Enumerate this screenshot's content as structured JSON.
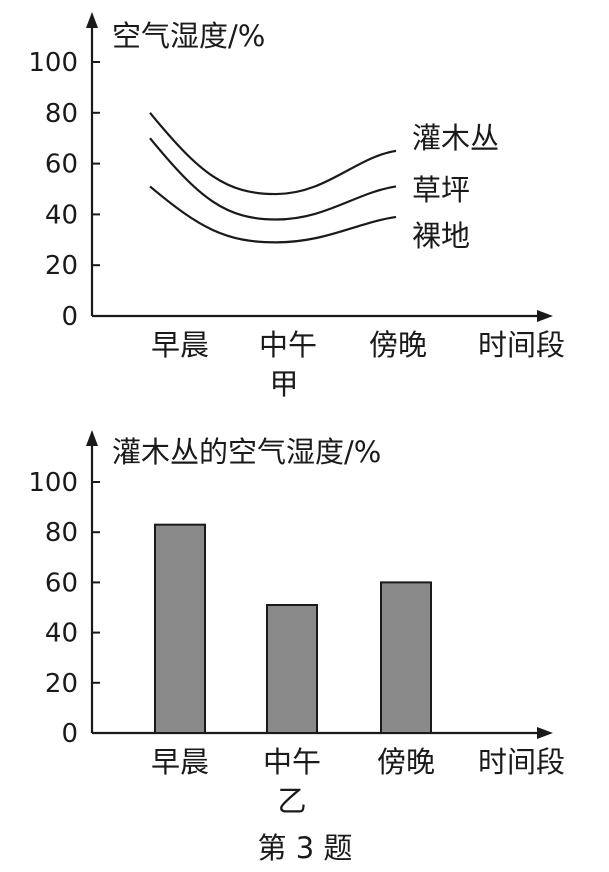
{
  "chart_data": [
    {
      "type": "line",
      "panel_label": "甲",
      "ylabel": "空气湿度/%",
      "xlabel": "时间段",
      "categories": [
        "早晨",
        "中午",
        "傍晚"
      ],
      "ylim": [
        0,
        100
      ],
      "yticks": [
        "0",
        "20",
        "40",
        "60",
        "80",
        "100"
      ],
      "series": [
        {
          "name": "灌木丛",
          "values": [
            80,
            48,
            65
          ]
        },
        {
          "name": "草坪",
          "values": [
            70,
            38,
            51
          ]
        },
        {
          "name": "裸地",
          "values": [
            51,
            29,
            39
          ]
        }
      ]
    },
    {
      "type": "bar",
      "panel_label": "乙",
      "ylabel": "灌木丛的空气湿度/%",
      "xlabel": "时间段",
      "categories": [
        "早晨",
        "中午",
        "傍晚"
      ],
      "ylim": [
        0,
        100
      ],
      "yticks": [
        "0",
        "20",
        "40",
        "60",
        "80",
        "100"
      ],
      "values": [
        83,
        51,
        60
      ]
    }
  ],
  "caption": "第 3 题"
}
